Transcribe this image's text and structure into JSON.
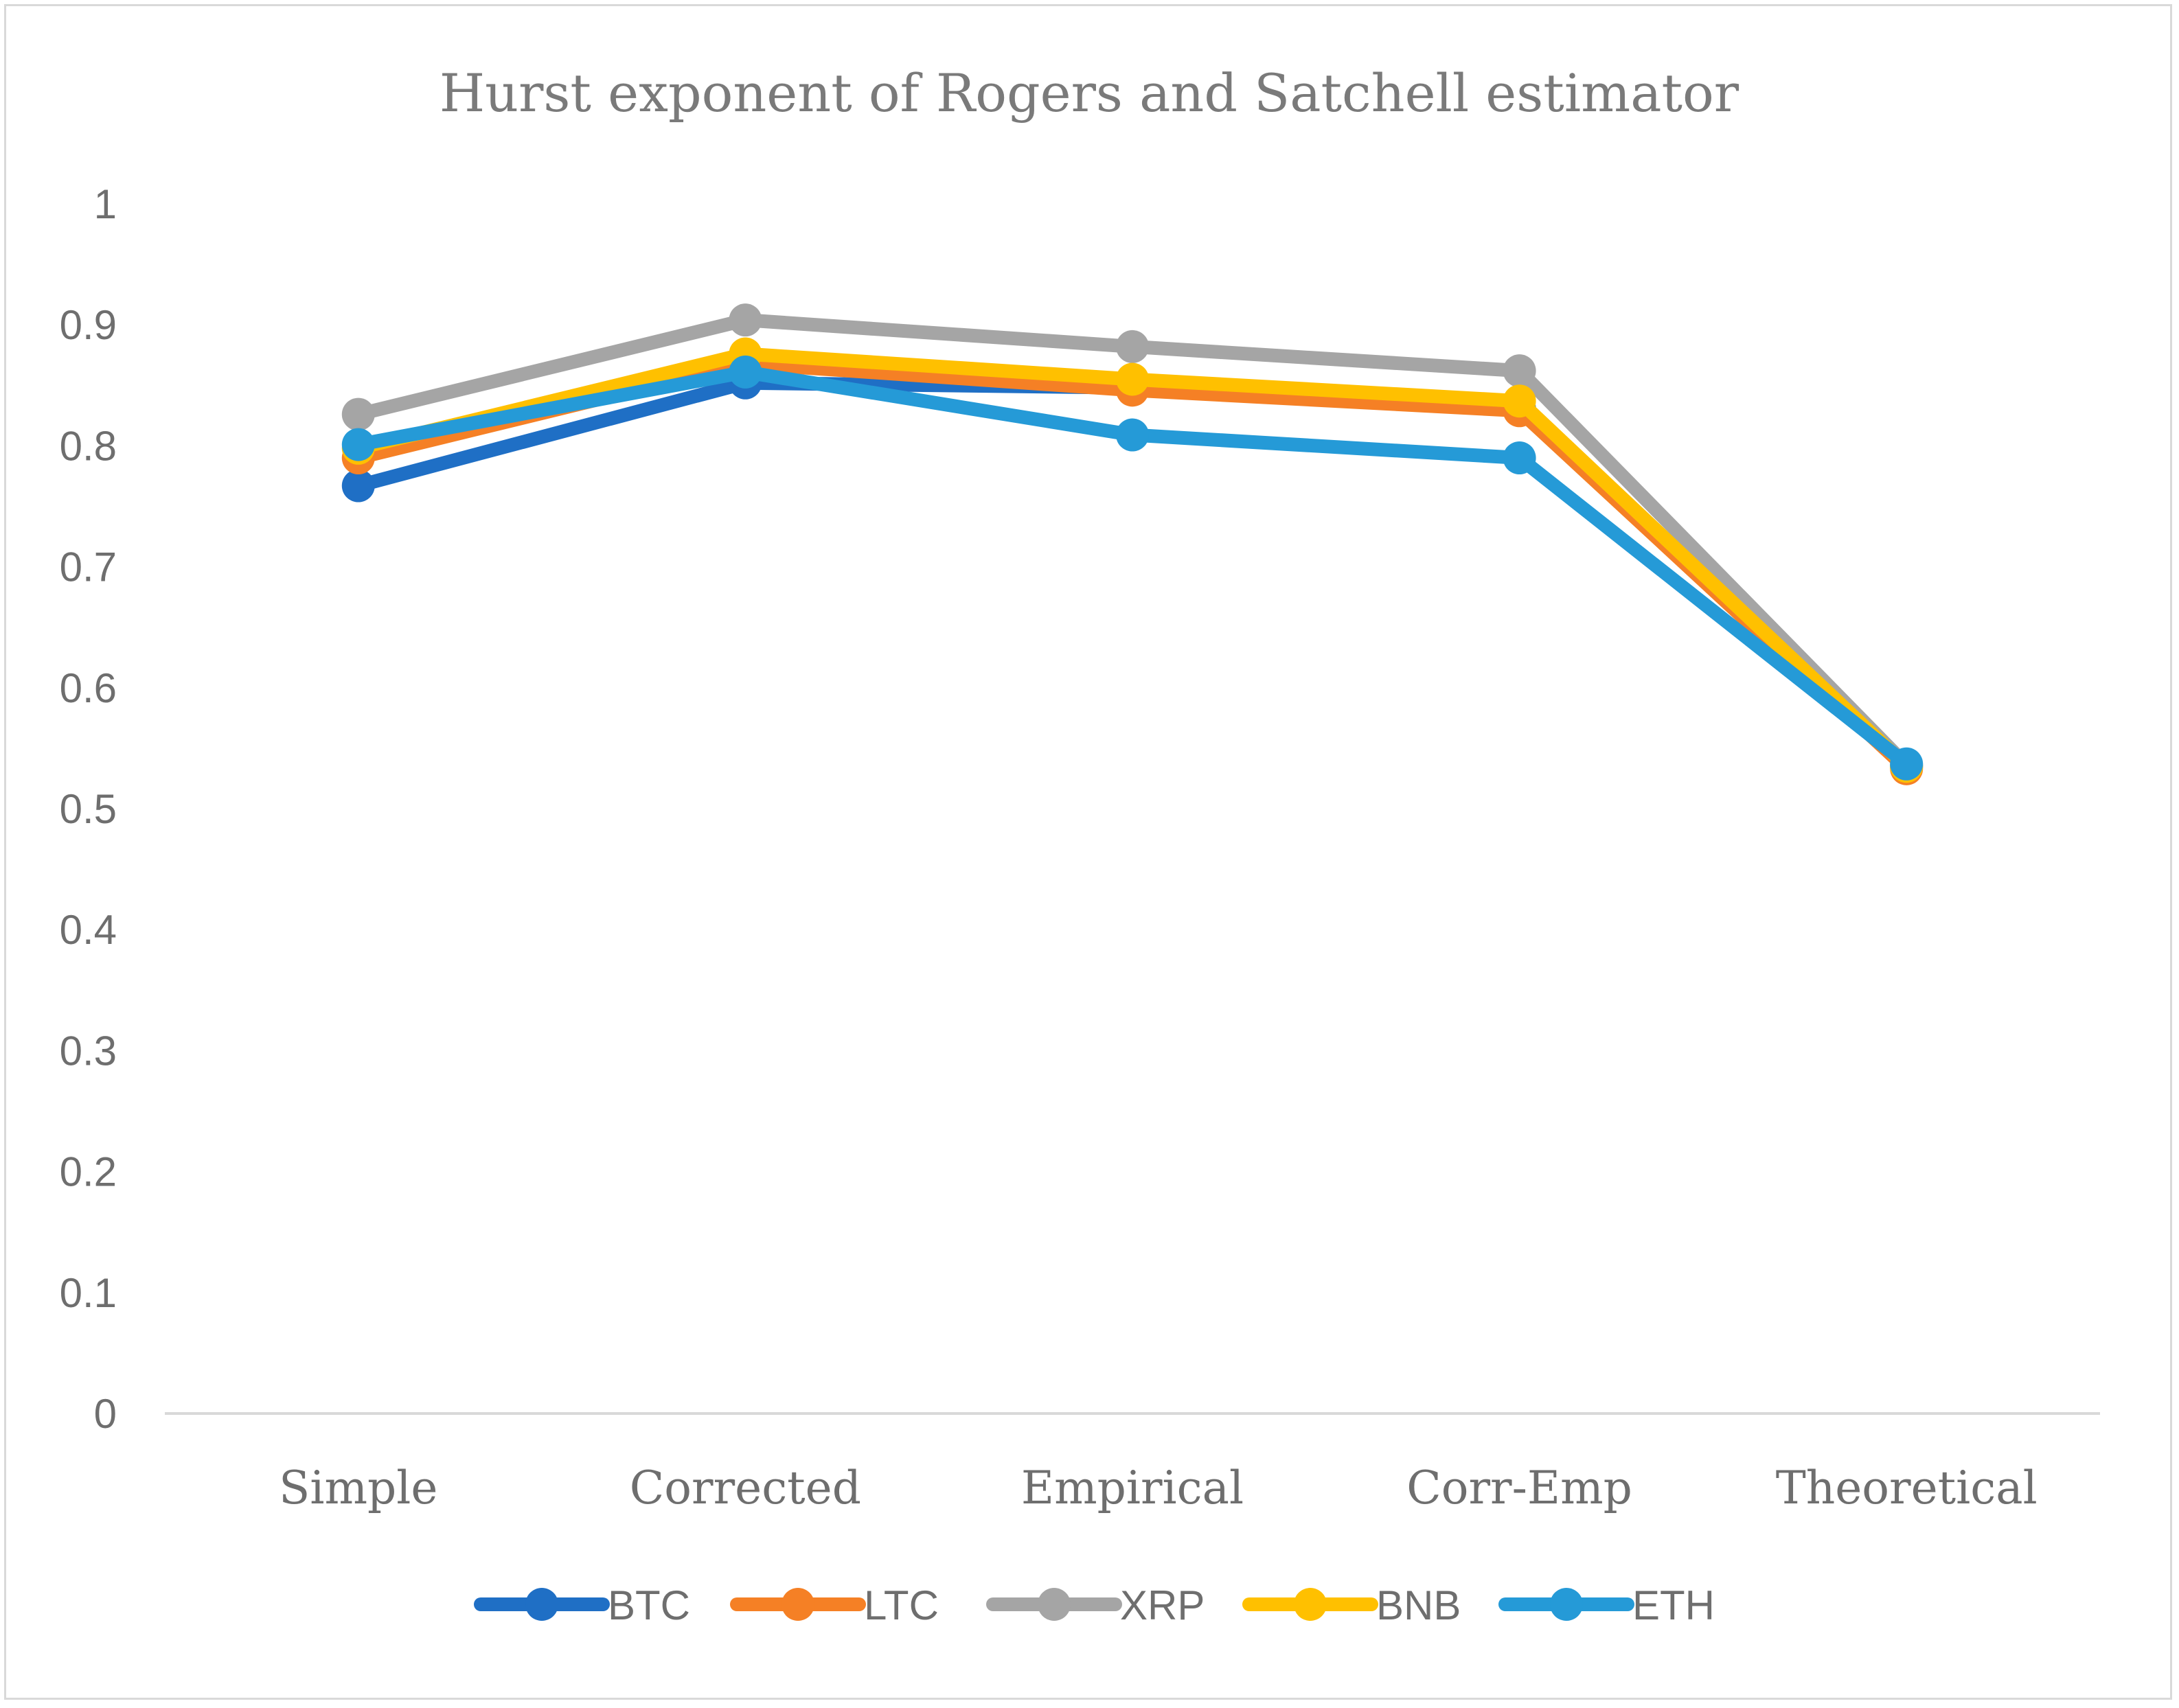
{
  "chart_data": {
    "type": "line",
    "title": "Hurst exponent of Rogers and Satchell  estimator",
    "xlabel": "",
    "ylabel": "",
    "categories": [
      "Simple",
      "Corrected",
      "Empirical",
      "Corr-Emp",
      "Theoretical"
    ],
    "ylim": [
      0,
      1
    ],
    "yticks": [
      0,
      0.1,
      0.2,
      0.3,
      0.4,
      0.5,
      0.6,
      0.7,
      0.8,
      0.9,
      1
    ],
    "ytick_labels": [
      "0",
      "0.1",
      "0.2",
      "0.3",
      "0.4",
      "0.5",
      "0.6",
      "0.7",
      "0.8",
      "0.9",
      "1"
    ],
    "grid": false,
    "legend_position": "bottom",
    "series": [
      {
        "name": "BTC",
        "color": "#1f6fc5",
        "values": [
          0.767,
          0.852,
          0.848,
          0.831,
          0.535
        ]
      },
      {
        "name": "LTC",
        "color": "#f58025",
        "values": [
          0.79,
          0.868,
          0.846,
          0.829,
          0.533
        ]
      },
      {
        "name": "XRP",
        "color": "#a5a5a5",
        "values": [
          0.826,
          0.904,
          0.882,
          0.862,
          0.536
        ]
      },
      {
        "name": "BNB",
        "color": "#ffc000",
        "values": [
          0.798,
          0.876,
          0.855,
          0.837,
          0.535
        ]
      },
      {
        "name": "ETH",
        "color": "#259ad7",
        "values": [
          0.801,
          0.861,
          0.809,
          0.79,
          0.537
        ]
      }
    ]
  }
}
